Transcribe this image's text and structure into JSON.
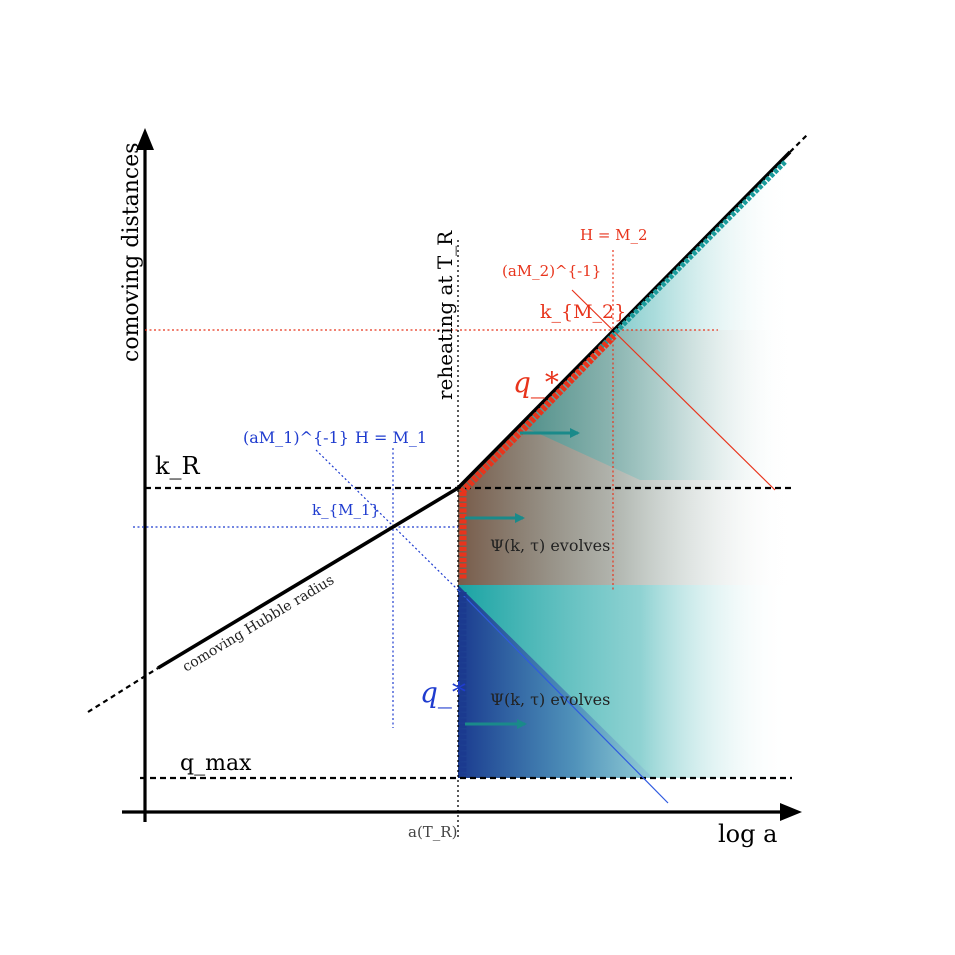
{
  "axes": {
    "y_label": "comoving distances",
    "x_label": "log a",
    "x_tick": "a(T_R)"
  },
  "horizontal_lines": {
    "kR": "k_R",
    "qmax": "q_max",
    "kM1": "k_{M_1}",
    "kM2": "k_{M_2}"
  },
  "labels": {
    "reheating": "reheating at T_R",
    "hubble": "comoving Hubble radius",
    "aM1": "(aM_1)^{-1}",
    "HM1": "H = M_1",
    "aM2": "(aM_2)^{-1}",
    "HM2": "H = M_2",
    "q_star_red": "q_*",
    "q_star_blue": "q_*",
    "psi_upper": "Ψ(k, τ) evolves",
    "psi_lower": "Ψ(k, τ) evolves"
  },
  "colors": {
    "axis": "#000000",
    "red": "#e8341c",
    "blue": "#1f3ccf",
    "teal": "#1a9b9b",
    "dark_blue": "#1b3a8f",
    "brown": "#8a4a34"
  }
}
